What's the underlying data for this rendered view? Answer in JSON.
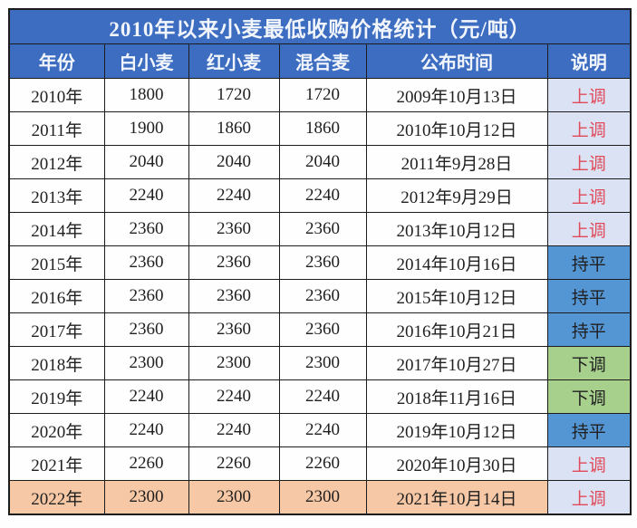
{
  "chart_data": {
    "type": "table",
    "title": "2010年以来小麦最低收购价格统计（元/吨）",
    "columns": [
      {
        "key": "year",
        "label": "年份"
      },
      {
        "key": "white",
        "label": "白小麦"
      },
      {
        "key": "red",
        "label": "红小麦"
      },
      {
        "key": "mixed",
        "label": "混合麦"
      },
      {
        "key": "date",
        "label": "公布时间"
      },
      {
        "key": "status",
        "label": "说明"
      }
    ],
    "rows": [
      {
        "year": "2010年",
        "white": 1800,
        "red": 1720,
        "mixed": 1720,
        "date": "2009年10月13日",
        "status": "上调",
        "status_type": "up",
        "highlight": false
      },
      {
        "year": "2011年",
        "white": 1900,
        "red": 1860,
        "mixed": 1860,
        "date": "2010年10月12日",
        "status": "上调",
        "status_type": "up",
        "highlight": false
      },
      {
        "year": "2012年",
        "white": 2040,
        "red": 2040,
        "mixed": 2040,
        "date": "2011年9月28日",
        "status": "上调",
        "status_type": "up",
        "highlight": false
      },
      {
        "year": "2013年",
        "white": 2240,
        "red": 2240,
        "mixed": 2240,
        "date": "2012年9月29日",
        "status": "上调",
        "status_type": "up",
        "highlight": false
      },
      {
        "year": "2014年",
        "white": 2360,
        "red": 2360,
        "mixed": 2360,
        "date": "2013年10月12日",
        "status": "上调",
        "status_type": "up",
        "highlight": false
      },
      {
        "year": "2015年",
        "white": 2360,
        "red": 2360,
        "mixed": 2360,
        "date": "2014年10月16日",
        "status": "持平",
        "status_type": "flat",
        "highlight": false
      },
      {
        "year": "2016年",
        "white": 2360,
        "red": 2360,
        "mixed": 2360,
        "date": "2015年10月12日",
        "status": "持平",
        "status_type": "flat",
        "highlight": false
      },
      {
        "year": "2017年",
        "white": 2360,
        "red": 2360,
        "mixed": 2360,
        "date": "2016年10月21日",
        "status": "持平",
        "status_type": "flat",
        "highlight": false
      },
      {
        "year": "2018年",
        "white": 2300,
        "red": 2300,
        "mixed": 2300,
        "date": "2017年10月27日",
        "status": "下调",
        "status_type": "down",
        "highlight": false
      },
      {
        "year": "2019年",
        "white": 2240,
        "red": 2240,
        "mixed": 2240,
        "date": "2018年11月16日",
        "status": "下调",
        "status_type": "down",
        "highlight": false
      },
      {
        "year": "2020年",
        "white": 2240,
        "red": 2240,
        "mixed": 2240,
        "date": "2019年10月12日",
        "status": "持平",
        "status_type": "flat",
        "highlight": false
      },
      {
        "year": "2021年",
        "white": 2260,
        "red": 2260,
        "mixed": 2260,
        "date": "2020年10月30日",
        "status": "上调",
        "status_type": "up",
        "highlight": false
      },
      {
        "year": "2022年",
        "white": 2300,
        "red": 2300,
        "mixed": 2300,
        "date": "2021年10月14日",
        "status": "上调",
        "status_type": "up",
        "highlight": true
      }
    ]
  },
  "colors": {
    "header_bg": "#3d6dc1",
    "header_text": "#f2f6fc",
    "status_up_bg": "#dbe2f3",
    "status_up_text": "#e04a5a",
    "status_flat_bg": "#5496d4",
    "status_down_bg": "#a8d08d",
    "highlight_row_bg": "#f6c8a5",
    "body_text": "#1f1f1f",
    "grid_line": "#1c1c1c"
  }
}
